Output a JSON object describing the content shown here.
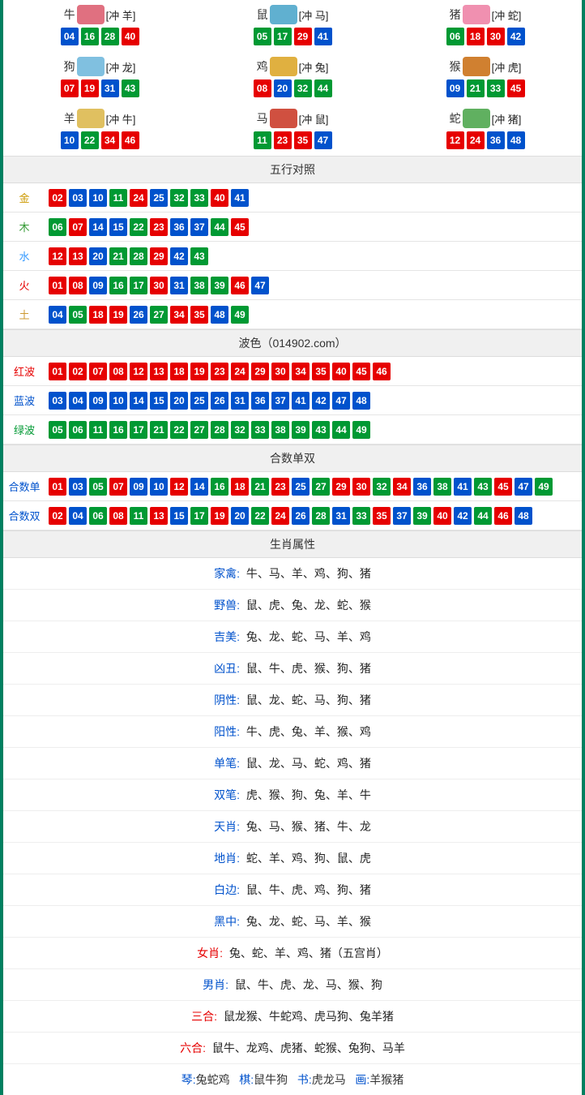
{
  "colors": {
    "red": "#e60000",
    "blue": "#0052cc",
    "green": "#009933"
  },
  "zodiac_icon_bg": {
    "牛": "#e07080",
    "鼠": "#60b0d0",
    "猪": "#f090b0",
    "狗": "#80c0e0",
    "鸡": "#e0b040",
    "猴": "#d08030",
    "羊": "#e0c060",
    "马": "#d05040",
    "蛇": "#60b060"
  },
  "zodiacs": [
    {
      "name": "牛",
      "sub": "[冲 羊]",
      "nums": [
        [
          "04",
          "blue"
        ],
        [
          "16",
          "green"
        ],
        [
          "28",
          "green"
        ],
        [
          "40",
          "red"
        ]
      ]
    },
    {
      "name": "鼠",
      "sub": "[冲 马]",
      "nums": [
        [
          "05",
          "green"
        ],
        [
          "17",
          "green"
        ],
        [
          "29",
          "red"
        ],
        [
          "41",
          "blue"
        ]
      ]
    },
    {
      "name": "猪",
      "sub": "[冲 蛇]",
      "nums": [
        [
          "06",
          "green"
        ],
        [
          "18",
          "red"
        ],
        [
          "30",
          "red"
        ],
        [
          "42",
          "blue"
        ]
      ]
    },
    {
      "name": "狗",
      "sub": "[冲 龙]",
      "nums": [
        [
          "07",
          "red"
        ],
        [
          "19",
          "red"
        ],
        [
          "31",
          "blue"
        ],
        [
          "43",
          "green"
        ]
      ]
    },
    {
      "name": "鸡",
      "sub": "[冲 兔]",
      "nums": [
        [
          "08",
          "red"
        ],
        [
          "20",
          "blue"
        ],
        [
          "32",
          "green"
        ],
        [
          "44",
          "green"
        ]
      ]
    },
    {
      "name": "猴",
      "sub": "[冲 虎]",
      "nums": [
        [
          "09",
          "blue"
        ],
        [
          "21",
          "green"
        ],
        [
          "33",
          "green"
        ],
        [
          "45",
          "red"
        ]
      ]
    },
    {
      "name": "羊",
      "sub": "[冲 牛]",
      "nums": [
        [
          "10",
          "blue"
        ],
        [
          "22",
          "green"
        ],
        [
          "34",
          "red"
        ],
        [
          "46",
          "red"
        ]
      ]
    },
    {
      "name": "马",
      "sub": "[冲 鼠]",
      "nums": [
        [
          "11",
          "green"
        ],
        [
          "23",
          "red"
        ],
        [
          "35",
          "red"
        ],
        [
          "47",
          "blue"
        ]
      ]
    },
    {
      "name": "蛇",
      "sub": "[冲 猪]",
      "nums": [
        [
          "12",
          "red"
        ],
        [
          "24",
          "red"
        ],
        [
          "36",
          "blue"
        ],
        [
          "48",
          "blue"
        ]
      ]
    }
  ],
  "wuxing": {
    "title": "五行对照",
    "rows": [
      {
        "label": "金",
        "cls": "gold-txt",
        "nums": [
          [
            "02",
            "red"
          ],
          [
            "03",
            "blue"
          ],
          [
            "10",
            "blue"
          ],
          [
            "11",
            "green"
          ],
          [
            "24",
            "red"
          ],
          [
            "25",
            "blue"
          ],
          [
            "32",
            "green"
          ],
          [
            "33",
            "green"
          ],
          [
            "40",
            "red"
          ],
          [
            "41",
            "blue"
          ]
        ]
      },
      {
        "label": "木",
        "cls": "wood-txt",
        "nums": [
          [
            "06",
            "green"
          ],
          [
            "07",
            "red"
          ],
          [
            "14",
            "blue"
          ],
          [
            "15",
            "blue"
          ],
          [
            "22",
            "green"
          ],
          [
            "23",
            "red"
          ],
          [
            "36",
            "blue"
          ],
          [
            "37",
            "blue"
          ],
          [
            "44",
            "green"
          ],
          [
            "45",
            "red"
          ]
        ]
      },
      {
        "label": "水",
        "cls": "water-txt",
        "nums": [
          [
            "12",
            "red"
          ],
          [
            "13",
            "red"
          ],
          [
            "20",
            "blue"
          ],
          [
            "21",
            "green"
          ],
          [
            "28",
            "green"
          ],
          [
            "29",
            "red"
          ],
          [
            "42",
            "blue"
          ],
          [
            "43",
            "green"
          ]
        ]
      },
      {
        "label": "火",
        "cls": "fire-txt",
        "nums": [
          [
            "01",
            "red"
          ],
          [
            "08",
            "red"
          ],
          [
            "09",
            "blue"
          ],
          [
            "16",
            "green"
          ],
          [
            "17",
            "green"
          ],
          [
            "30",
            "red"
          ],
          [
            "31",
            "blue"
          ],
          [
            "38",
            "green"
          ],
          [
            "39",
            "green"
          ],
          [
            "46",
            "red"
          ],
          [
            "47",
            "blue"
          ]
        ]
      },
      {
        "label": "土",
        "cls": "earth-txt",
        "nums": [
          [
            "04",
            "blue"
          ],
          [
            "05",
            "green"
          ],
          [
            "18",
            "red"
          ],
          [
            "19",
            "red"
          ],
          [
            "26",
            "blue"
          ],
          [
            "27",
            "green"
          ],
          [
            "34",
            "red"
          ],
          [
            "35",
            "red"
          ],
          [
            "48",
            "blue"
          ],
          [
            "49",
            "green"
          ]
        ]
      }
    ]
  },
  "bose": {
    "title": "波色（014902.com）",
    "rows": [
      {
        "label": "红波",
        "cls": "red-txt",
        "nums": [
          [
            "01",
            "red"
          ],
          [
            "02",
            "red"
          ],
          [
            "07",
            "red"
          ],
          [
            "08",
            "red"
          ],
          [
            "12",
            "red"
          ],
          [
            "13",
            "red"
          ],
          [
            "18",
            "red"
          ],
          [
            "19",
            "red"
          ],
          [
            "23",
            "red"
          ],
          [
            "24",
            "red"
          ],
          [
            "29",
            "red"
          ],
          [
            "30",
            "red"
          ],
          [
            "34",
            "red"
          ],
          [
            "35",
            "red"
          ],
          [
            "40",
            "red"
          ],
          [
            "45",
            "red"
          ],
          [
            "46",
            "red"
          ]
        ]
      },
      {
        "label": "蓝波",
        "cls": "blue-txt",
        "nums": [
          [
            "03",
            "blue"
          ],
          [
            "04",
            "blue"
          ],
          [
            "09",
            "blue"
          ],
          [
            "10",
            "blue"
          ],
          [
            "14",
            "blue"
          ],
          [
            "15",
            "blue"
          ],
          [
            "20",
            "blue"
          ],
          [
            "25",
            "blue"
          ],
          [
            "26",
            "blue"
          ],
          [
            "31",
            "blue"
          ],
          [
            "36",
            "blue"
          ],
          [
            "37",
            "blue"
          ],
          [
            "41",
            "blue"
          ],
          [
            "42",
            "blue"
          ],
          [
            "47",
            "blue"
          ],
          [
            "48",
            "blue"
          ]
        ]
      },
      {
        "label": "绿波",
        "cls": "green-txt",
        "nums": [
          [
            "05",
            "green"
          ],
          [
            "06",
            "green"
          ],
          [
            "11",
            "green"
          ],
          [
            "16",
            "green"
          ],
          [
            "17",
            "green"
          ],
          [
            "21",
            "green"
          ],
          [
            "22",
            "green"
          ],
          [
            "27",
            "green"
          ],
          [
            "28",
            "green"
          ],
          [
            "32",
            "green"
          ],
          [
            "33",
            "green"
          ],
          [
            "38",
            "green"
          ],
          [
            "39",
            "green"
          ],
          [
            "43",
            "green"
          ],
          [
            "44",
            "green"
          ],
          [
            "49",
            "green"
          ]
        ]
      }
    ]
  },
  "heshu": {
    "title": "合数单双",
    "rows": [
      {
        "label": "合数单",
        "cls": "blue-txt",
        "nums": [
          [
            "01",
            "red"
          ],
          [
            "03",
            "blue"
          ],
          [
            "05",
            "green"
          ],
          [
            "07",
            "red"
          ],
          [
            "09",
            "blue"
          ],
          [
            "10",
            "blue"
          ],
          [
            "12",
            "red"
          ],
          [
            "14",
            "blue"
          ],
          [
            "16",
            "green"
          ],
          [
            "18",
            "red"
          ],
          [
            "21",
            "green"
          ],
          [
            "23",
            "red"
          ],
          [
            "25",
            "blue"
          ],
          [
            "27",
            "green"
          ],
          [
            "29",
            "red"
          ],
          [
            "30",
            "red"
          ],
          [
            "32",
            "green"
          ],
          [
            "34",
            "red"
          ],
          [
            "36",
            "blue"
          ],
          [
            "38",
            "green"
          ],
          [
            "41",
            "blue"
          ],
          [
            "43",
            "green"
          ],
          [
            "45",
            "red"
          ],
          [
            "47",
            "blue"
          ],
          [
            "49",
            "green"
          ]
        ]
      },
      {
        "label": "合数双",
        "cls": "blue-txt",
        "nums": [
          [
            "02",
            "red"
          ],
          [
            "04",
            "blue"
          ],
          [
            "06",
            "green"
          ],
          [
            "08",
            "red"
          ],
          [
            "11",
            "green"
          ],
          [
            "13",
            "red"
          ],
          [
            "15",
            "blue"
          ],
          [
            "17",
            "green"
          ],
          [
            "19",
            "red"
          ],
          [
            "20",
            "blue"
          ],
          [
            "22",
            "green"
          ],
          [
            "24",
            "red"
          ],
          [
            "26",
            "blue"
          ],
          [
            "28",
            "green"
          ],
          [
            "31",
            "blue"
          ],
          [
            "33",
            "green"
          ],
          [
            "35",
            "red"
          ],
          [
            "37",
            "blue"
          ],
          [
            "39",
            "green"
          ],
          [
            "40",
            "red"
          ],
          [
            "42",
            "blue"
          ],
          [
            "44",
            "green"
          ],
          [
            "46",
            "red"
          ],
          [
            "48",
            "blue"
          ]
        ]
      }
    ]
  },
  "shuxing": {
    "title": "生肖属性",
    "rows": [
      {
        "label": "家禽",
        "cls": "blue-txt",
        "val": "牛、马、羊、鸡、狗、猪"
      },
      {
        "label": "野兽",
        "cls": "blue-txt",
        "val": "鼠、虎、兔、龙、蛇、猴"
      },
      {
        "label": "吉美",
        "cls": "blue-txt",
        "val": "兔、龙、蛇、马、羊、鸡"
      },
      {
        "label": "凶丑",
        "cls": "blue-txt",
        "val": "鼠、牛、虎、猴、狗、猪"
      },
      {
        "label": "阴性",
        "cls": "blue-txt",
        "val": "鼠、龙、蛇、马、狗、猪"
      },
      {
        "label": "阳性",
        "cls": "blue-txt",
        "val": "牛、虎、兔、羊、猴、鸡"
      },
      {
        "label": "单笔",
        "cls": "blue-txt",
        "val": "鼠、龙、马、蛇、鸡、猪"
      },
      {
        "label": "双笔",
        "cls": "blue-txt",
        "val": "虎、猴、狗、兔、羊、牛"
      },
      {
        "label": "天肖",
        "cls": "blue-txt",
        "val": "兔、马、猴、猪、牛、龙"
      },
      {
        "label": "地肖",
        "cls": "blue-txt",
        "val": "蛇、羊、鸡、狗、鼠、虎"
      },
      {
        "label": "白边",
        "cls": "blue-txt",
        "val": "鼠、牛、虎、鸡、狗、猪"
      },
      {
        "label": "黑中",
        "cls": "blue-txt",
        "val": "兔、龙、蛇、马、羊、猴"
      },
      {
        "label": "女肖",
        "cls": "red-txt",
        "val": "兔、蛇、羊、鸡、猪（五宫肖）"
      },
      {
        "label": "男肖",
        "cls": "blue-txt",
        "val": "鼠、牛、虎、龙、马、猴、狗"
      },
      {
        "label": "三合",
        "cls": "red-txt",
        "val": "鼠龙猴、牛蛇鸡、虎马狗、兔羊猪"
      },
      {
        "label": "六合",
        "cls": "red-txt",
        "val": "鼠牛、龙鸡、虎猪、蛇猴、兔狗、马羊"
      }
    ],
    "footer_parts": [
      {
        "label": "琴",
        "cls": "blue-txt",
        "val": "兔蛇鸡"
      },
      {
        "label": "棋",
        "cls": "blue-txt",
        "val": "鼠牛狗"
      },
      {
        "label": "书",
        "cls": "blue-txt",
        "val": "虎龙马"
      },
      {
        "label": "画",
        "cls": "blue-txt",
        "val": "羊猴猪"
      }
    ]
  }
}
